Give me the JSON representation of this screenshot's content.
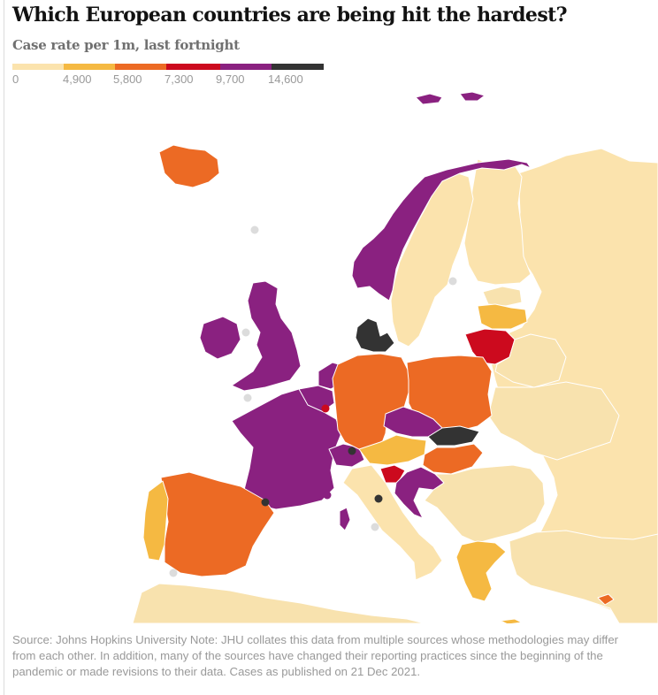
{
  "header": {
    "title": "Which European countries are being hit the hardest?",
    "subtitle": "Case rate per 1m, last fortnight"
  },
  "legend": {
    "ticks": [
      "0",
      "4,900",
      "5,800",
      "7,300",
      "9,700",
      "14,600"
    ],
    "colors": [
      "#fbe3ad",
      "#f5b942",
      "#ec6a24",
      "#cc0a1e",
      "#8a2180",
      "#333333"
    ]
  },
  "map_colors": {
    "land_default": "#f8e2ae",
    "no_data_dot": "#dcdcdc",
    "borders": "#ffffff"
  },
  "countries": [
    {
      "name": "Iceland",
      "color": "#ec6a24"
    },
    {
      "name": "Norway",
      "color": "#8a2180"
    },
    {
      "name": "United Kingdom",
      "color": "#8a2180"
    },
    {
      "name": "Ireland",
      "color": "#8a2180"
    },
    {
      "name": "France",
      "color": "#8a2180"
    },
    {
      "name": "Belgium",
      "color": "#8a2180"
    },
    {
      "name": "Netherlands",
      "color": "#8a2180"
    },
    {
      "name": "Switzerland",
      "color": "#8a2180"
    },
    {
      "name": "Czech Republic",
      "color": "#8a2180"
    },
    {
      "name": "Croatia",
      "color": "#8a2180"
    },
    {
      "name": "Denmark",
      "color": "#333333"
    },
    {
      "name": "Slovakia",
      "color": "#333333"
    },
    {
      "name": "Luxembourg",
      "color": "#cc0a1e"
    },
    {
      "name": "Lithuania",
      "color": "#cc0a1e"
    },
    {
      "name": "Slovenia",
      "color": "#cc0a1e"
    },
    {
      "name": "Germany",
      "color": "#ec6a24"
    },
    {
      "name": "Poland",
      "color": "#ec6a24"
    },
    {
      "name": "Spain",
      "color": "#ec6a24"
    },
    {
      "name": "Hungary",
      "color": "#ec6a24"
    },
    {
      "name": "Cyprus",
      "color": "#ec6a24"
    },
    {
      "name": "Austria",
      "color": "#f5b942"
    },
    {
      "name": "Portugal",
      "color": "#f5b942"
    },
    {
      "name": "Latvia",
      "color": "#f5b942"
    },
    {
      "name": "Greece",
      "color": "#f5b942"
    },
    {
      "name": "Italy",
      "color": "#fbe3ad"
    },
    {
      "name": "Sweden",
      "color": "#fbe3ad"
    },
    {
      "name": "Finland",
      "color": "#fbe3ad"
    },
    {
      "name": "Russia",
      "color": "#fbe3ad"
    }
  ],
  "footer": {
    "source": "Source: Johns Hopkins University Note: JHU collates this data from multiple sources whose methodologies may differ from each other. In addition, many of the sources have changed their reporting practices since the beginning of the pandemic or made revisions to their data. Cases as published on 21 Dec 2021."
  }
}
